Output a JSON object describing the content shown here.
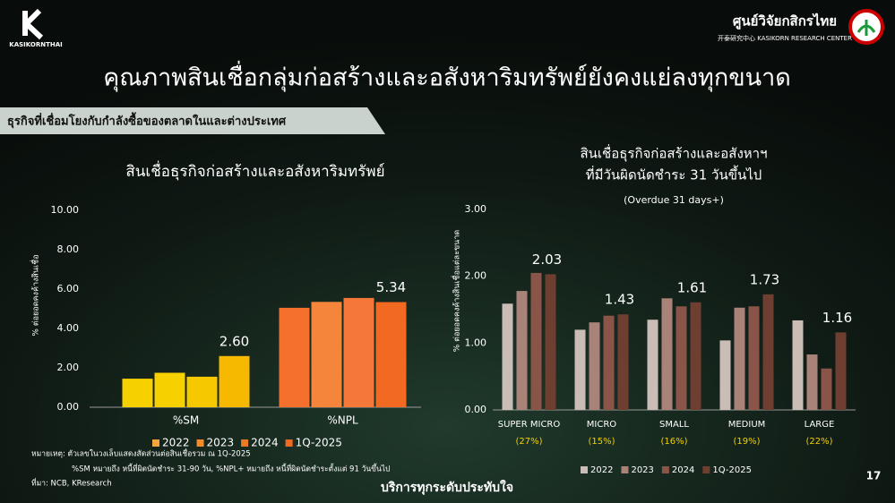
{
  "header": {
    "logo_text": "KASIKORNTHAI",
    "org_name": "ศูนย์วิจัยกสิกรไทย",
    "org_sub": "开泰研究中心 KASIKORN RESEARCH CENTER",
    "title": "คุณภาพสินเชื่อกลุ่มก่อสร้างและอสังหาริมทรัพย์ยังคงแย่ลงทุกขนาด",
    "banner": "ธุรกิจที่เชื่อมโยงกับกำลังซื้อของตลาดในและต่างประเทศ"
  },
  "chart_data": [
    {
      "type": "bar",
      "title": [
        "สินเชื่อธุรกิจก่อสร้างและอสังหาริมทรัพย์"
      ],
      "ylabel": "% ต่อยอดคงค้างสินเชื่อ",
      "categories": [
        "%SM",
        "%NPL"
      ],
      "series": [
        {
          "name": "2022",
          "color": "#f5a53a",
          "colors": [
            "#f7d000",
            "#f4702c"
          ],
          "values": [
            1.45,
            5.05
          ],
          "value_labels": [
            null,
            null
          ]
        },
        {
          "name": "2023",
          "color": "#f28a2e",
          "colors": [
            "#f7d000",
            "#f5853a"
          ],
          "values": [
            1.75,
            5.35
          ],
          "value_labels": [
            null,
            null
          ]
        },
        {
          "name": "2024",
          "color": "#ee7a26",
          "colors": [
            "#f5c800",
            "#f5783a"
          ],
          "values": [
            1.55,
            5.55
          ],
          "value_labels": [
            null,
            null
          ]
        },
        {
          "name": "1Q-2025",
          "color": "#f06a22",
          "colors": [
            "#f7b800",
            "#f26a22"
          ],
          "values": [
            2.6,
            5.34
          ],
          "value_labels": [
            "2.60",
            "5.34"
          ]
        }
      ],
      "ylim": [
        0,
        10
      ],
      "yticks": [
        {
          "value": 0,
          "label": "0.00"
        },
        {
          "value": 2,
          "label": "2.00"
        },
        {
          "value": 4,
          "label": "4.00"
        },
        {
          "value": 6,
          "label": "6.00"
        },
        {
          "value": 8,
          "label": "8.00"
        },
        {
          "value": 10,
          "label": "10.00"
        }
      ]
    },
    {
      "type": "bar",
      "title": [
        "สินเชื่อธุรกิจก่อสร้างและอสังหาฯ",
        "ที่มีวันผิดนัดชำระ 31 วันขึ้นไป"
      ],
      "subtitle": "(Overdue 31 days+)",
      "ylabel": "% ต่อยอดคงค้างสินเชื่อแต่ละขนาด",
      "categories": [
        "SUPER MICRO",
        "MICRO",
        "SMALL",
        "MEDIUM",
        "LARGE"
      ],
      "category_notes": [
        "(27%)",
        "(15%)",
        "(16%)",
        "(19%)",
        "(22%)"
      ],
      "series": [
        {
          "name": "2022",
          "color": "#c9bdb6",
          "values": [
            1.59,
            1.2,
            1.35,
            1.04,
            1.34
          ],
          "value_labels": [
            null,
            null,
            null,
            null,
            null
          ]
        },
        {
          "name": "2023",
          "color": "#a98378",
          "values": [
            1.78,
            1.31,
            1.67,
            1.53,
            0.83
          ],
          "value_labels": [
            null,
            null,
            null,
            null,
            null
          ]
        },
        {
          "name": "2024",
          "color": "#8a5548",
          "values": [
            2.05,
            1.41,
            1.55,
            1.55,
            0.62
          ],
          "value_labels": [
            null,
            null,
            null,
            null,
            null
          ]
        },
        {
          "name": "1Q-2025",
          "color": "#6e3e30",
          "values": [
            2.03,
            1.43,
            1.61,
            1.73,
            1.16
          ],
          "value_labels": [
            "2.03",
            "1.43",
            "1.61",
            "1.73",
            "1.16"
          ]
        }
      ],
      "ylim": [
        0,
        3
      ],
      "yticks": [
        {
          "value": 0,
          "label": "0.00"
        },
        {
          "value": 1,
          "label": "1.00"
        },
        {
          "value": 2,
          "label": "2.00"
        },
        {
          "value": 3,
          "label": "3.00"
        }
      ]
    }
  ],
  "notes": [
    "หมายเหตุ: ตัวเลขในวงเล็บแสดงสัดส่วนต่อสินเชื่อรวม ณ 1Q-2025",
    "%SM หมายถึง หนี้ที่ผิดนัดชำระ 31-90 วัน, %NPL+ หมายถึง หนี้ที่ผิดนัดชำระตั้งแต่ 91 วันขึ้นไป",
    "ที่มา: NCB, KResearch"
  ],
  "footer": "บริการทุกระดับประทับใจ",
  "page_number": "17"
}
